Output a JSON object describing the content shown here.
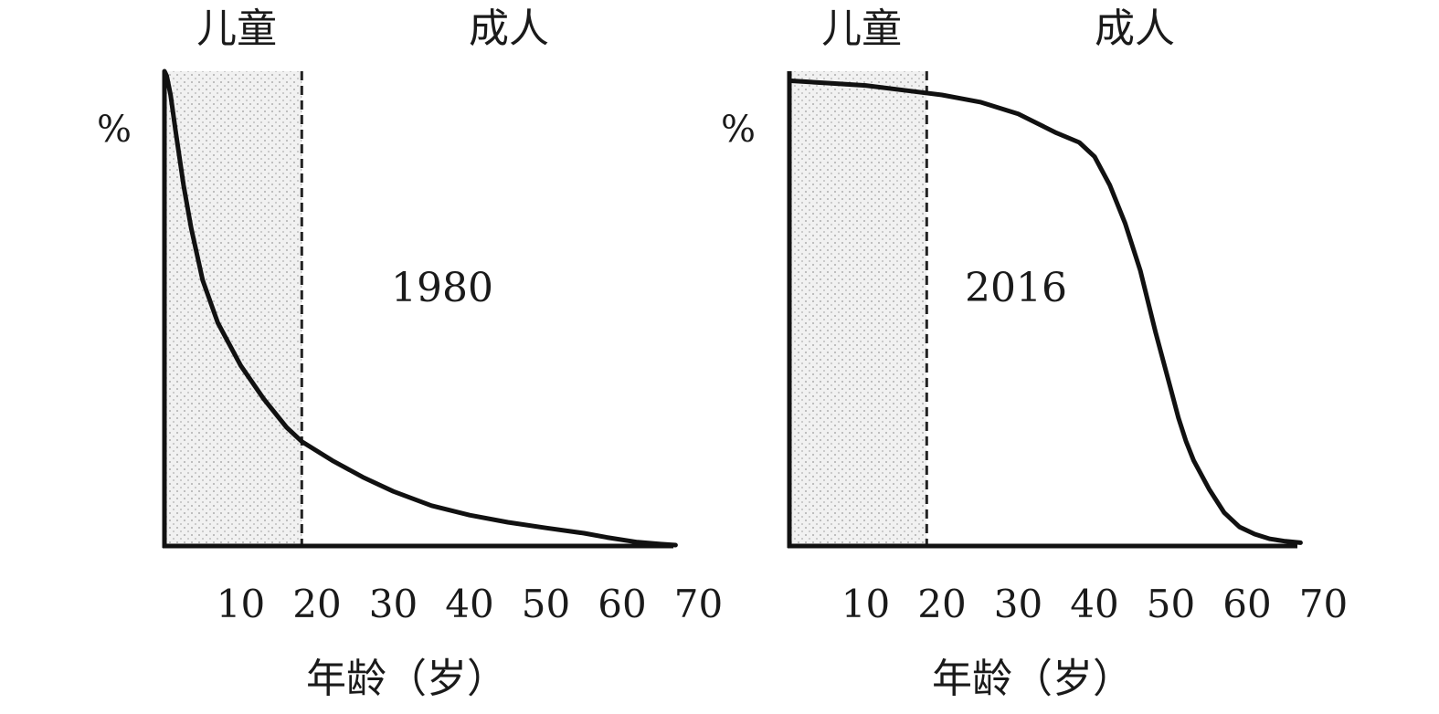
{
  "chart_data": [
    {
      "type": "line",
      "title": "",
      "annotation": "1980",
      "ylabel": "%",
      "xlabel": "年龄（岁）",
      "region_labels": {
        "children": "儿童",
        "adults": "成人"
      },
      "xticks": [
        10,
        20,
        30,
        40,
        50,
        60,
        70
      ],
      "xlim": [
        0,
        70
      ],
      "ylim": [
        0,
        100
      ],
      "grid": false,
      "child_region_end_age": 18,
      "series": [
        {
          "x": [
            0,
            0.3,
            0.8,
            1.5,
            2.5,
            3.5,
            5,
            7,
            10,
            13,
            16,
            18,
            22,
            26,
            30,
            35,
            40,
            45,
            50,
            55,
            58,
            62,
            65,
            67
          ],
          "y": [
            100,
            99,
            95,
            87,
            76,
            67,
            56,
            47,
            38,
            31,
            25,
            22,
            18,
            14.5,
            11.5,
            8.5,
            6.5,
            5,
            3.8,
            2.7,
            1.8,
            0.8,
            0.4,
            0.2
          ]
        }
      ]
    },
    {
      "type": "line",
      "title": "",
      "annotation": "2016",
      "ylabel": "%",
      "xlabel": "年龄（岁）",
      "region_labels": {
        "children": "儿童",
        "adults": "成人"
      },
      "xticks": [
        10,
        20,
        30,
        40,
        50,
        60,
        70
      ],
      "xlim": [
        0,
        70
      ],
      "ylim": [
        0,
        100
      ],
      "grid": false,
      "child_region_end_age": 18,
      "series": [
        {
          "x": [
            0,
            5,
            10,
            15,
            20,
            25,
            30,
            35,
            38,
            40,
            42,
            44,
            46,
            48,
            50,
            51,
            52,
            53,
            55,
            57,
            59,
            61,
            63,
            65,
            67
          ],
          "y": [
            98,
            97.5,
            97,
            96,
            95,
            93.5,
            91,
            87,
            85,
            82,
            76,
            68,
            58,
            45,
            33,
            27,
            22,
            18,
            12,
            7,
            4,
            2.5,
            1.5,
            1,
            0.7
          ]
        }
      ]
    }
  ]
}
